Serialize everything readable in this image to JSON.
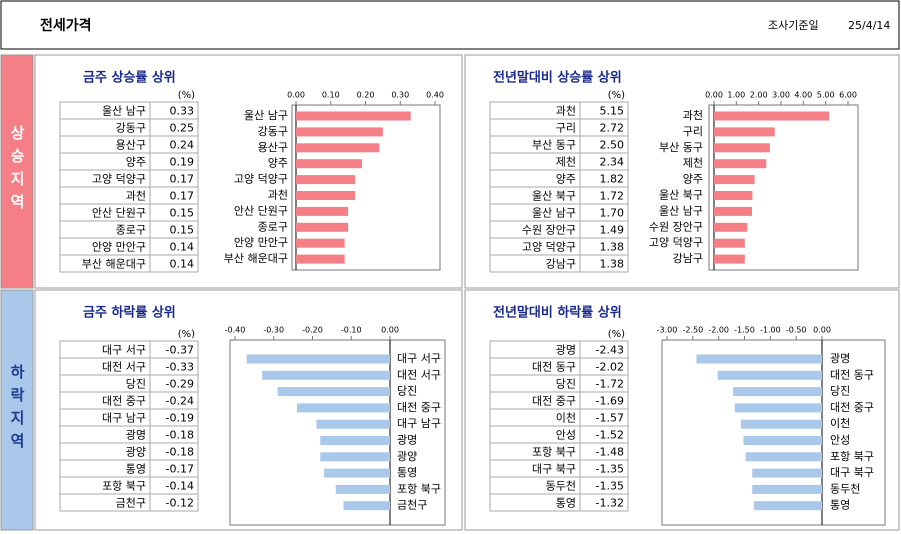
{
  "header": {
    "title": "전세가격",
    "date_label": "조사기준일",
    "date": "25/4/14"
  },
  "sections": [
    {
      "label": "상승지역"
    },
    {
      "label": "하락지역"
    }
  ],
  "chart_data": [
    {
      "type": "bar",
      "title": "금주 상승률 상위",
      "unit": "(%)",
      "color": "#f47f86",
      "categories": [
        "울산 남구",
        "강동구",
        "용산구",
        "양주",
        "고양 덕양구",
        "과천",
        "안산 단원구",
        "종로구",
        "안양 만안구",
        "부산 해운대구"
      ],
      "values": [
        0.33,
        0.25,
        0.24,
        0.19,
        0.17,
        0.17,
        0.15,
        0.15,
        0.14,
        0.14
      ],
      "xlim": [
        0,
        0.4
      ],
      "xticks": [
        {
          "value": 0,
          "label": "0.00"
        },
        {
          "value": 0.1,
          "label": "0.10"
        },
        {
          "value": 0.2,
          "label": "0.20"
        },
        {
          "value": 0.3,
          "label": "0.30"
        },
        {
          "value": 0.4,
          "label": "0.40"
        }
      ]
    },
    {
      "type": "bar",
      "title": "전년말대비 상승률 상위",
      "unit": "(%)",
      "color": "#f47f86",
      "categories": [
        "과천",
        "구리",
        "부산 동구",
        "제천",
        "양주",
        "울산 북구",
        "울산 남구",
        "수원 장안구",
        "고양 덕양구",
        "강남구"
      ],
      "values": [
        5.15,
        2.72,
        2.5,
        2.34,
        1.82,
        1.72,
        1.7,
        1.49,
        1.38,
        1.38
      ],
      "value_labels": [
        "5.15",
        "2.72",
        "2.50",
        "2.34",
        "1.82",
        "1.72",
        "1.70",
        "1.49",
        "1.38",
        "1.38"
      ],
      "xlim": [
        0,
        6
      ],
      "xticks": [
        {
          "value": 0,
          "label": "0.00"
        },
        {
          "value": 1,
          "label": "1.00"
        },
        {
          "value": 2,
          "label": "2.00"
        },
        {
          "value": 3,
          "label": "3.00"
        },
        {
          "value": 4,
          "label": "4.00"
        },
        {
          "value": 5,
          "label": "5.00"
        },
        {
          "value": 6,
          "label": "6.00"
        }
      ]
    },
    {
      "type": "bar",
      "title": "금주 하락률 상위",
      "unit": "(%)",
      "color": "#a9c8ea",
      "categories": [
        "대구 서구",
        "대전 서구",
        "당진",
        "대전 중구",
        "대구 남구",
        "광명",
        "광양",
        "통영",
        "포항 북구",
        "금천구"
      ],
      "values": [
        -0.37,
        -0.33,
        -0.29,
        -0.24,
        -0.19,
        -0.18,
        -0.18,
        -0.17,
        -0.14,
        -0.12
      ],
      "xlim": [
        -0.4,
        0
      ],
      "xticks": [
        {
          "value": -0.4,
          "label": "-0.40"
        },
        {
          "value": -0.3,
          "label": "-0.30"
        },
        {
          "value": -0.2,
          "label": "-0.20"
        },
        {
          "value": -0.1,
          "label": "-0.10"
        },
        {
          "value": 0,
          "label": "0.00"
        }
      ]
    },
    {
      "type": "bar",
      "title": "전년말대비 하락률 상위",
      "unit": "(%)",
      "color": "#a9c8ea",
      "categories": [
        "광명",
        "대전 동구",
        "당진",
        "대전 중구",
        "이천",
        "안성",
        "포항 북구",
        "대구 북구",
        "동두천",
        "통영"
      ],
      "values": [
        -2.43,
        -2.02,
        -1.72,
        -1.69,
        -1.57,
        -1.52,
        -1.48,
        -1.35,
        -1.35,
        -1.32
      ],
      "xlim": [
        -3,
        0
      ],
      "xticks": [
        {
          "value": -3,
          "label": "-3.00"
        },
        {
          "value": -2.5,
          "label": "-2.50"
        },
        {
          "value": -2,
          "label": "-2.00"
        },
        {
          "value": -1.5,
          "label": "-1.50"
        },
        {
          "value": -1,
          "label": "-1.00"
        },
        {
          "value": -0.5,
          "label": "-0.50"
        },
        {
          "value": 0,
          "label": "0.00"
        }
      ]
    }
  ]
}
